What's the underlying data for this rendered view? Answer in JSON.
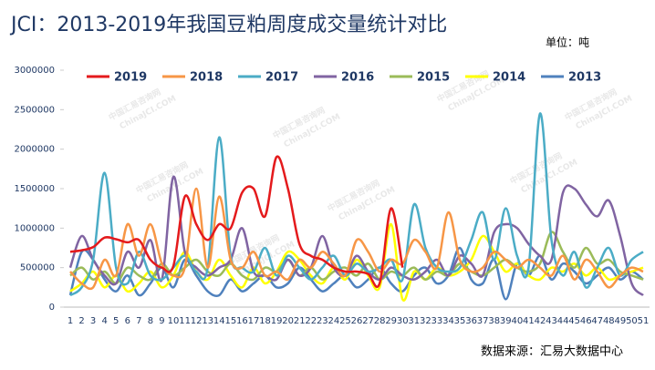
{
  "chart_data": {
    "type": "line",
    "title": "JCI：2013-2019年我国豆粕周度成交量统计对比",
    "unit": "单位：吨",
    "source": "数据来源：汇易大数据中心",
    "watermark": [
      "中国汇易咨询网",
      "ChinaJCI.COM"
    ],
    "categories": [
      "1",
      "2",
      "3",
      "4",
      "5",
      "6",
      "7",
      "8",
      "9",
      "10",
      "11",
      "12",
      "13",
      "14",
      "15",
      "16",
      "17",
      "18",
      "19",
      "20",
      "21",
      "22",
      "23",
      "24",
      "25",
      "26",
      "27",
      "28",
      "29",
      "30",
      "31",
      "32",
      "33",
      "34",
      "35",
      "36",
      "37",
      "38",
      "39",
      "40",
      "41",
      "42",
      "43",
      "44",
      "45",
      "46",
      "47",
      "48",
      "49",
      "50",
      "51"
    ],
    "ylim": [
      0,
      3000000
    ],
    "yticks": [
      0,
      500000,
      1000000,
      1500000,
      2000000,
      2500000,
      3000000
    ],
    "legend": "top",
    "series": [
      {
        "name": "2019",
        "color": "#e41a1c",
        "values": [
          700000,
          720000,
          760000,
          880000,
          860000,
          820000,
          850000,
          600000,
          500000,
          520000,
          1400000,
          1050000,
          850000,
          1050000,
          1000000,
          1450000,
          1500000,
          1150000,
          1900000,
          1500000,
          800000,
          650000,
          600000,
          500000,
          450000,
          450000,
          420000,
          300000,
          1250000,
          500000,
          null,
          null,
          null,
          null,
          null,
          null,
          null,
          null,
          null,
          null,
          null,
          null,
          null,
          null,
          null,
          null,
          null,
          null,
          null,
          null,
          null
        ]
      },
      {
        "name": "2018",
        "color": "#f79646",
        "values": [
          450000,
          300000,
          250000,
          600000,
          400000,
          1050000,
          650000,
          1050000,
          550000,
          400000,
          500000,
          1500000,
          500000,
          1400000,
          600000,
          500000,
          700000,
          400000,
          450000,
          350000,
          600000,
          500000,
          700000,
          550000,
          400000,
          850000,
          700000,
          450000,
          600000,
          550000,
          850000,
          700000,
          500000,
          1200000,
          600000,
          450000,
          500000,
          700000,
          600000,
          500000,
          600000,
          500000,
          400000,
          650000,
          350000,
          600000,
          450000,
          250000,
          400000,
          500000,
          450000
        ]
      },
      {
        "name": "2017",
        "color": "#4bacc6",
        "values": [
          150000,
          250000,
          600000,
          1700000,
          500000,
          300000,
          700000,
          400000,
          350000,
          500000,
          650000,
          450000,
          500000,
          2150000,
          650000,
          500000,
          450000,
          750000,
          400000,
          650000,
          500000,
          350000,
          500000,
          650000,
          400000,
          550000,
          450000,
          500000,
          600000,
          350000,
          1300000,
          750000,
          500000,
          450000,
          500000,
          850000,
          1200000,
          600000,
          1250000,
          650000,
          500000,
          2450000,
          850000,
          400000,
          700000,
          250000,
          500000,
          750000,
          400000,
          600000,
          700000
        ]
      },
      {
        "name": "2016",
        "color": "#8064a2",
        "values": [
          500000,
          900000,
          600000,
          400000,
          300000,
          700000,
          500000,
          850000,
          350000,
          1650000,
          700000,
          500000,
          400000,
          500000,
          600000,
          1000000,
          450000,
          400000,
          350000,
          600000,
          400000,
          500000,
          900000,
          500000,
          400000,
          650000,
          450000,
          350000,
          500000,
          400000,
          350000,
          450000,
          600000,
          400000,
          650000,
          550000,
          400000,
          950000,
          1050000,
          1000000,
          800000,
          650000,
          600000,
          1450000,
          1500000,
          1300000,
          1150000,
          1350000,
          900000,
          300000,
          150000
        ]
      },
      {
        "name": "2015",
        "color": "#9bbb59",
        "values": [
          400000,
          500000,
          350000,
          450000,
          300000,
          500000,
          400000,
          350000,
          550000,
          400000,
          500000,
          600000,
          450000,
          400000,
          550000,
          400000,
          350000,
          500000,
          450000,
          600000,
          400000,
          500000,
          350000,
          450000,
          500000,
          400000,
          550000,
          350000,
          450000,
          400000,
          500000,
          350000,
          450000,
          400000,
          550000,
          450000,
          400000,
          500000,
          600000,
          500000,
          450000,
          550000,
          950000,
          700000,
          500000,
          750000,
          550000,
          600000,
          450000,
          400000,
          350000
        ]
      },
      {
        "name": "2014",
        "color": "#ffff00",
        "values": [
          200000,
          300000,
          450000,
          250000,
          400000,
          200000,
          300000,
          450000,
          250000,
          400000,
          700000,
          450000,
          350000,
          600000,
          400000,
          250000,
          500000,
          300000,
          450000,
          700000,
          600000,
          400000,
          300000,
          500000,
          350000,
          600000,
          400000,
          250000,
          1050000,
          100000,
          450000,
          350000,
          500000,
          400000,
          450000,
          600000,
          900000,
          700000,
          450000,
          550000,
          400000,
          350000,
          500000,
          450000,
          550000,
          400000,
          500000,
          350000,
          400000,
          450000,
          500000
        ]
      },
      {
        "name": "2013",
        "color": "#4f81bd",
        "values": [
          150000,
          700000,
          600000,
          350000,
          200000,
          400000,
          150000,
          300000,
          500000,
          250000,
          600000,
          400000,
          200000,
          150000,
          350000,
          200000,
          300000,
          400000,
          250000,
          300000,
          500000,
          350000,
          200000,
          300000,
          400000,
          250000,
          350000,
          500000,
          300000,
          200000,
          400000,
          500000,
          300000,
          400000,
          750000,
          350000,
          300000,
          600000,
          100000,
          550000,
          400000,
          650000,
          350000,
          550000,
          450000,
          300000,
          400000,
          500000,
          350000,
          450000,
          350000
        ]
      }
    ]
  }
}
